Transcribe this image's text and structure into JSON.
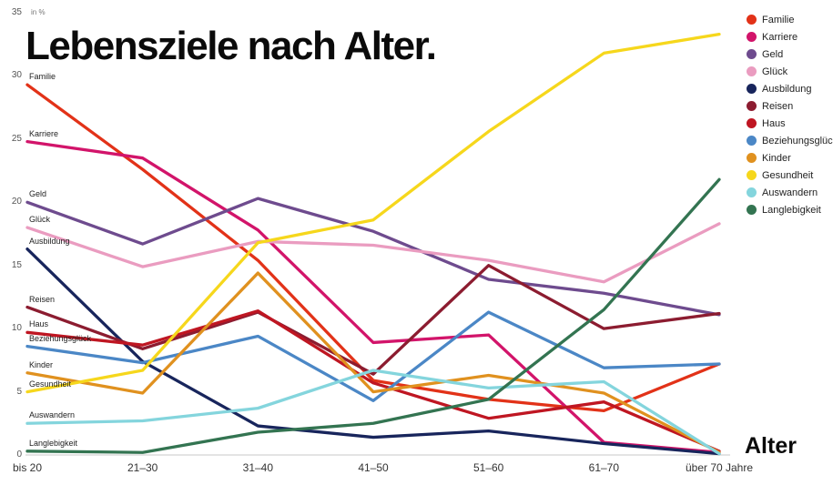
{
  "title": "Lebensziele nach Alter.",
  "unit_label": "in %",
  "x_axis_label": "Alter",
  "chart_data": {
    "type": "line",
    "categories": [
      "bis 20",
      "21–30",
      "31–40",
      "41–50",
      "51–60",
      "61–70",
      "über 70 Jahre"
    ],
    "ylim": [
      0,
      35
    ],
    "y_ticks": [
      0,
      5,
      10,
      15,
      20,
      25,
      30,
      35
    ],
    "grid": false,
    "legend_position": "top-right",
    "axis_color": "#c8c8c8",
    "series": [
      {
        "name": "Familie",
        "color": "#e23218",
        "values": [
          29.3,
          22.6,
          15.4,
          5.9,
          4.4,
          3.5,
          7.2
        ]
      },
      {
        "name": "Karriere",
        "color": "#d2146a",
        "values": [
          24.8,
          23.5,
          17.8,
          8.9,
          9.5,
          1.0,
          0.2
        ]
      },
      {
        "name": "Geld",
        "color": "#6e4b8e",
        "values": [
          20.0,
          16.7,
          20.3,
          17.7,
          13.9,
          12.8,
          11.1
        ]
      },
      {
        "name": "Glück",
        "color": "#ea9cc0",
        "values": [
          18.0,
          14.9,
          16.9,
          16.6,
          15.4,
          13.7,
          18.3
        ]
      },
      {
        "name": "Ausbildung",
        "color": "#18255c",
        "values": [
          16.3,
          7.4,
          2.3,
          1.4,
          1.9,
          0.9,
          0.1
        ]
      },
      {
        "name": "Reisen",
        "color": "#8c1c30",
        "values": [
          11.7,
          8.4,
          11.3,
          6.4,
          15.0,
          10.0,
          11.2
        ]
      },
      {
        "name": "Haus",
        "color": "#bf1622",
        "values": [
          9.7,
          8.7,
          11.4,
          5.7,
          2.9,
          4.2,
          0.3
        ]
      },
      {
        "name": "Beziehungsglück",
        "color": "#4b87c6",
        "values": [
          8.6,
          7.3,
          9.4,
          4.3,
          11.3,
          6.9,
          7.2
        ]
      },
      {
        "name": "Kinder",
        "color": "#e0911f",
        "values": [
          6.5,
          4.9,
          14.4,
          5.0,
          6.3,
          4.9,
          0.2
        ]
      },
      {
        "name": "Gesundheit",
        "color": "#f6d71c",
        "values": [
          5.0,
          6.7,
          16.8,
          18.6,
          25.6,
          31.8,
          33.3
        ]
      },
      {
        "name": "Auswandern",
        "color": "#84d5dd",
        "values": [
          2.5,
          2.7,
          3.7,
          6.7,
          5.3,
          5.8,
          0.1
        ]
      },
      {
        "name": "Langlebigkeit",
        "color": "#337451",
        "values": [
          0.3,
          0.2,
          1.8,
          2.5,
          4.4,
          11.5,
          21.8
        ]
      }
    ]
  }
}
